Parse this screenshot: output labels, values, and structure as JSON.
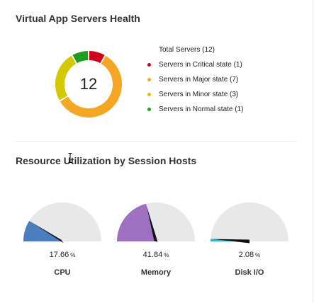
{
  "health": {
    "title": "Virtual App Servers Health",
    "total": "12",
    "legend_total": "Total Servers (12)",
    "states": [
      {
        "label": "Servers in Critical state (1)",
        "count": 1,
        "color": "#d0021b"
      },
      {
        "label": "Servers in Major state (7)",
        "count": 7,
        "color": "#f5a623"
      },
      {
        "label": "Servers in Minor state (3)",
        "count": 3,
        "color": "#d4c800"
      },
      {
        "label": "Servers in Normal state (1)",
        "count": 1,
        "color": "#1e9e1e"
      }
    ]
  },
  "utilization": {
    "title": "Resource Utilization by Session Hosts",
    "unit": "%",
    "gauges": [
      {
        "label": "CPU",
        "value": 17.66,
        "display": "17.66",
        "color": "#4a7ec0"
      },
      {
        "label": "Memory",
        "value": 41.84,
        "display": "41.84",
        "color": "#a070c0"
      },
      {
        "label": "Disk I/O",
        "value": 2.08,
        "display": "2.08",
        "color": "#26b6c8"
      }
    ]
  },
  "colors": {
    "gauge_track": "#e8e8e8",
    "needle": "#111111"
  }
}
